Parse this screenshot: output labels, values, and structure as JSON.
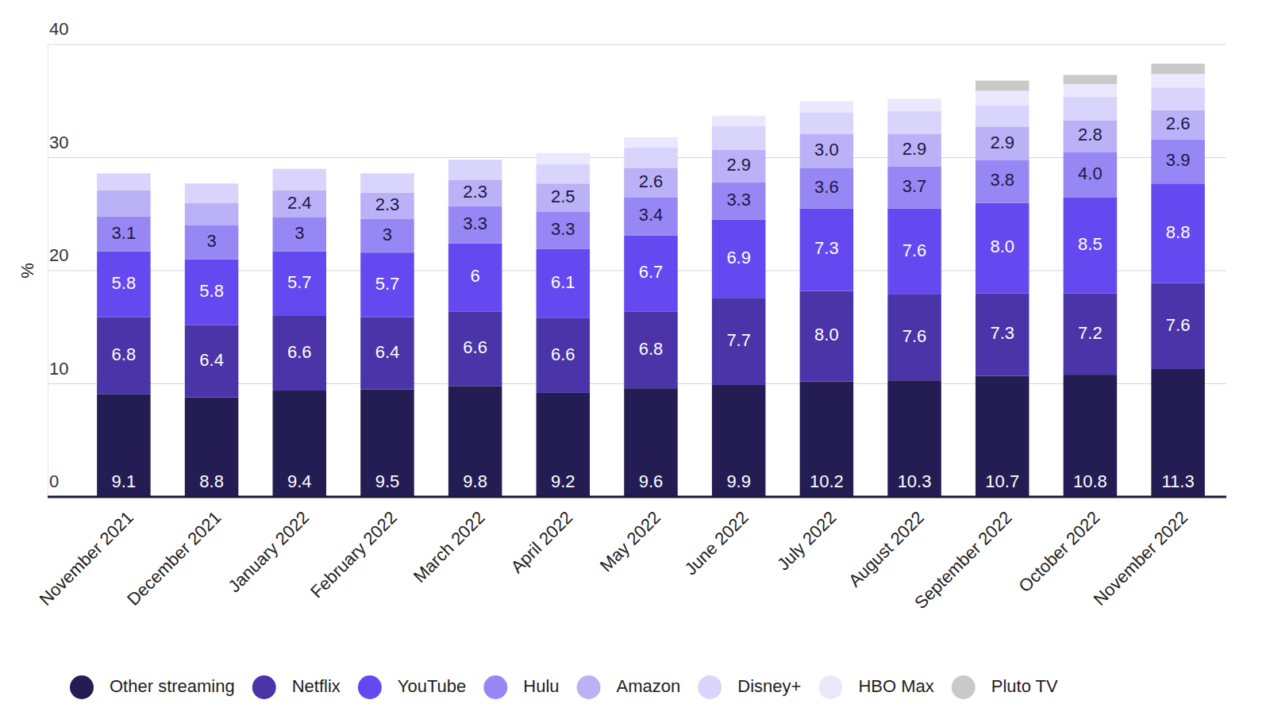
{
  "chart_data": {
    "type": "bar",
    "stacked": true,
    "grid": true,
    "y_label": "%",
    "ylim": [
      0,
      40
    ],
    "yticks": [
      0,
      10,
      20,
      30,
      40
    ],
    "legend": "bottom",
    "categories": [
      "November 2021",
      "December 2021",
      "January 2022",
      "February 2022",
      "March 2022",
      "April 2022",
      "May 2022",
      "June 2022",
      "July 2022",
      "August 2022",
      "September 2022",
      "October 2022",
      "November 2022"
    ],
    "series": [
      {
        "name": "Other streaming",
        "color": "#241d54",
        "data_labels": true,
        "values": [
          9.1,
          8.8,
          9.4,
          9.5,
          9.8,
          9.2,
          9.6,
          9.9,
          10.2,
          10.3,
          10.7,
          10.8,
          11.3
        ],
        "value_labels": [
          "9.1",
          "8.8",
          "9.4",
          "9.5",
          "9.8",
          "9.2",
          "9.6",
          "9.9",
          "10.2",
          "10.3",
          "10.7",
          "10.8",
          "11.3"
        ]
      },
      {
        "name": "Netflix",
        "color": "#4a34a8",
        "data_labels": true,
        "values": [
          6.8,
          6.4,
          6.6,
          6.4,
          6.6,
          6.6,
          6.8,
          7.7,
          8.0,
          7.6,
          7.3,
          7.2,
          7.6
        ],
        "value_labels": [
          "6.8",
          "6.4",
          "6.6",
          "6.4",
          "6.6",
          "6.6",
          "6.8",
          "7.7",
          "8.0",
          "7.6",
          "7.3",
          "7.2",
          "7.6"
        ]
      },
      {
        "name": "YouTube",
        "color": "#6549f0",
        "data_labels": true,
        "values": [
          5.8,
          5.8,
          5.7,
          5.7,
          6,
          6.1,
          6.7,
          6.9,
          7.3,
          7.6,
          8.0,
          8.5,
          8.8
        ],
        "value_labels": [
          "5.8",
          "5.8",
          "5.7",
          "5.7",
          "6",
          "6.1",
          "6.7",
          "6.9",
          "7.3",
          "7.6",
          "8.0",
          "8.5",
          "8.8"
        ]
      },
      {
        "name": "Hulu",
        "color": "#9787f5",
        "data_labels": true,
        "values": [
          3.1,
          3,
          3,
          3,
          3.3,
          3.3,
          3.4,
          3.3,
          3.6,
          3.7,
          3.8,
          4.0,
          3.9
        ],
        "value_labels": [
          "3.1",
          "3",
          "3",
          "3",
          "3.3",
          "3.3",
          "3.4",
          "3.3",
          "3.6",
          "3.7",
          "3.8",
          "4.0",
          "3.9"
        ]
      },
      {
        "name": "Amazon",
        "color": "#bab1f7",
        "data_labels": true,
        "values": [
          2.3,
          2.0,
          2.4,
          2.3,
          2.3,
          2.5,
          2.6,
          2.9,
          3.0,
          2.9,
          2.9,
          2.8,
          2.6
        ],
        "value_labels": [
          null,
          null,
          "2.4",
          "2.3",
          "2.3",
          "2.5",
          "2.6",
          "2.9",
          "3.0",
          "2.9",
          "2.9",
          "2.8",
          "2.6"
        ]
      },
      {
        "name": "Disney+",
        "color": "#d9d4fb",
        "values": [
          1.5,
          1.7,
          1.9,
          1.7,
          1.8,
          1.7,
          1.8,
          2.1,
          1.9,
          2.0,
          1.9,
          2.1,
          2.0
        ]
      },
      {
        "name": "HBO Max",
        "color": "#ebe8fd",
        "values": [
          null,
          null,
          null,
          null,
          null,
          1.0,
          0.9,
          0.9,
          1.0,
          1.1,
          1.3,
          1.1,
          1.2
        ]
      },
      {
        "name": "Pluto TV",
        "color": "#c9c9c9",
        "values": [
          null,
          null,
          null,
          null,
          null,
          null,
          null,
          null,
          null,
          null,
          0.9,
          0.8,
          0.9
        ]
      }
    ]
  }
}
